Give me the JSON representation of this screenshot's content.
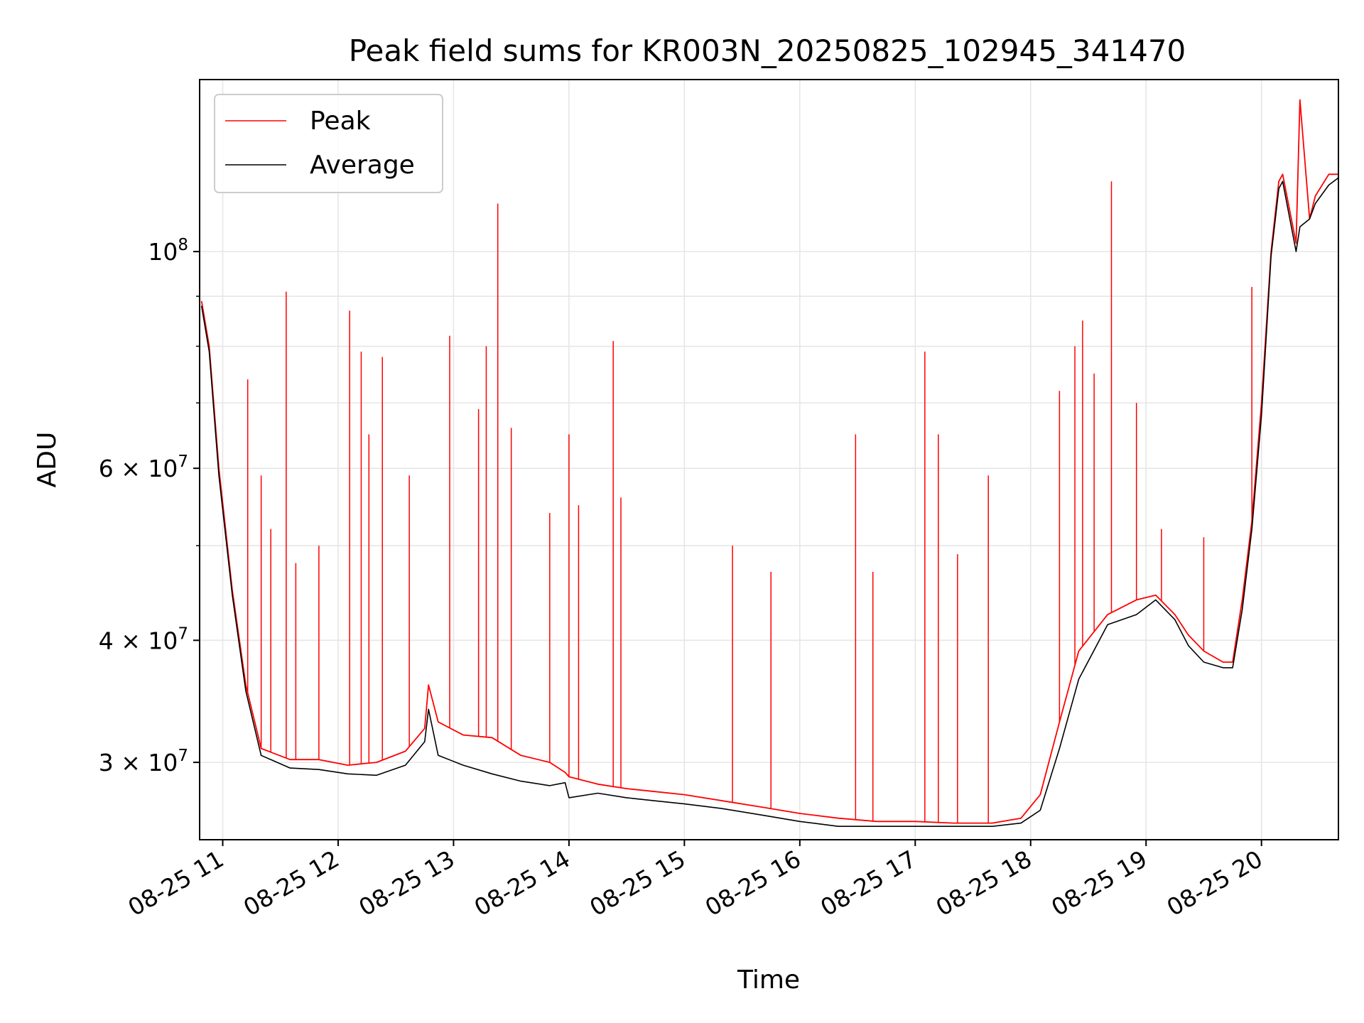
{
  "chart_data": {
    "type": "line",
    "title": "Peak field sums for KR003N_20250825_102945_341470",
    "xlabel": "Time",
    "ylabel": "ADU",
    "yscale": "log",
    "xlim": [
      "2025-08-25 10:48",
      "2025-08-25 20:40"
    ],
    "ylim": [
      25000000,
      150000000
    ],
    "grid": true,
    "legend": "upper-left",
    "x_ticks": [
      {
        "value": "2025-08-25 11:00",
        "label": "08-25 11"
      },
      {
        "value": "2025-08-25 12:00",
        "label": "08-25 12"
      },
      {
        "value": "2025-08-25 13:00",
        "label": "08-25 13"
      },
      {
        "value": "2025-08-25 14:00",
        "label": "08-25 14"
      },
      {
        "value": "2025-08-25 15:00",
        "label": "08-25 15"
      },
      {
        "value": "2025-08-25 16:00",
        "label": "08-25 16"
      },
      {
        "value": "2025-08-25 17:00",
        "label": "08-25 17"
      },
      {
        "value": "2025-08-25 18:00",
        "label": "08-25 18"
      },
      {
        "value": "2025-08-25 19:00",
        "label": "08-25 19"
      },
      {
        "value": "2025-08-25 20:00",
        "label": "08-25 20"
      }
    ],
    "y_ticks": [
      {
        "value": 30000000,
        "mantissa": "3",
        "exponent": "7"
      },
      {
        "value": 40000000,
        "mantissa": "4",
        "exponent": "7"
      },
      {
        "value": 60000000,
        "mantissa": "6",
        "exponent": "7"
      },
      {
        "value": 100000000,
        "mantissa": "",
        "exponent": "8"
      }
    ],
    "y_minor_ticks": [
      50000000,
      70000000,
      80000000,
      90000000
    ],
    "series": [
      {
        "name": "Peak",
        "color": "#ff0000",
        "x": [
          "2025-08-25 10:49",
          "2025-08-25 10:53",
          "2025-08-25 10:58",
          "2025-08-25 11:05",
          "2025-08-25 11:12",
          "2025-08-25 11:20",
          "2025-08-25 11:35",
          "2025-08-25 11:50",
          "2025-08-25 12:05",
          "2025-08-25 12:20",
          "2025-08-25 12:35",
          "2025-08-25 12:45",
          "2025-08-25 12:47",
          "2025-08-25 12:52",
          "2025-08-25 13:05",
          "2025-08-25 13:20",
          "2025-08-25 13:35",
          "2025-08-25 13:50",
          "2025-08-25 13:58",
          "2025-08-25 14:00",
          "2025-08-25 14:15",
          "2025-08-25 14:30",
          "2025-08-25 14:45",
          "2025-08-25 15:00",
          "2025-08-25 15:20",
          "2025-08-25 15:40",
          "2025-08-25 16:00",
          "2025-08-25 16:20",
          "2025-08-25 16:40",
          "2025-08-25 17:00",
          "2025-08-25 17:20",
          "2025-08-25 17:40",
          "2025-08-25 17:55",
          "2025-08-25 18:05",
          "2025-08-25 18:15",
          "2025-08-25 18:25",
          "2025-08-25 18:40",
          "2025-08-25 18:55",
          "2025-08-25 19:05",
          "2025-08-25 19:15",
          "2025-08-25 19:22",
          "2025-08-25 19:30",
          "2025-08-25 19:40",
          "2025-08-25 19:45",
          "2025-08-25 19:50",
          "2025-08-25 19:55",
          "2025-08-25 20:00",
          "2025-08-25 20:05",
          "2025-08-25 20:09",
          "2025-08-25 20:11",
          "2025-08-25 20:18",
          "2025-08-25 20:20",
          "2025-08-25 20:25",
          "2025-08-25 20:28",
          "2025-08-25 20:35",
          "2025-08-25 20:40"
        ],
        "values": [
          89000000,
          80000000,
          60000000,
          45000000,
          36000000,
          31000000,
          30200000,
          30200000,
          29800000,
          30000000,
          30800000,
          32500000,
          36000000,
          33000000,
          32000000,
          31800000,
          30500000,
          30000000,
          29300000,
          29000000,
          28500000,
          28200000,
          28000000,
          27800000,
          27400000,
          27000000,
          26600000,
          26300000,
          26100000,
          26100000,
          26000000,
          26000000,
          26300000,
          27800000,
          33000000,
          39000000,
          42500000,
          44000000,
          44500000,
          42500000,
          40500000,
          39000000,
          38000000,
          38000000,
          44000000,
          53000000,
          70000000,
          100000000,
          118000000,
          120000000,
          102000000,
          143000000,
          108000000,
          114000000,
          120000000,
          120000000
        ]
      },
      {
        "name": "Average",
        "color": "#000000",
        "x": [
          "2025-08-25 10:49",
          "2025-08-25 10:53",
          "2025-08-25 10:58",
          "2025-08-25 11:05",
          "2025-08-25 11:12",
          "2025-08-25 11:20",
          "2025-08-25 11:35",
          "2025-08-25 11:50",
          "2025-08-25 12:05",
          "2025-08-25 12:20",
          "2025-08-25 12:35",
          "2025-08-25 12:45",
          "2025-08-25 12:47",
          "2025-08-25 12:52",
          "2025-08-25 13:05",
          "2025-08-25 13:20",
          "2025-08-25 13:35",
          "2025-08-25 13:50",
          "2025-08-25 13:58",
          "2025-08-25 14:00",
          "2025-08-25 14:15",
          "2025-08-25 14:30",
          "2025-08-25 14:45",
          "2025-08-25 15:00",
          "2025-08-25 15:20",
          "2025-08-25 15:40",
          "2025-08-25 16:00",
          "2025-08-25 16:20",
          "2025-08-25 16:40",
          "2025-08-25 17:00",
          "2025-08-25 17:20",
          "2025-08-25 17:40",
          "2025-08-25 17:55",
          "2025-08-25 18:05",
          "2025-08-25 18:15",
          "2025-08-25 18:25",
          "2025-08-25 18:40",
          "2025-08-25 18:55",
          "2025-08-25 19:05",
          "2025-08-25 19:15",
          "2025-08-25 19:22",
          "2025-08-25 19:30",
          "2025-08-25 19:40",
          "2025-08-25 19:45",
          "2025-08-25 19:50",
          "2025-08-25 19:55",
          "2025-08-25 20:00",
          "2025-08-25 20:05",
          "2025-08-25 20:09",
          "2025-08-25 20:11",
          "2025-08-25 20:18",
          "2025-08-25 20:20",
          "2025-08-25 20:25",
          "2025-08-25 20:28",
          "2025-08-25 20:35",
          "2025-08-25 20:40"
        ],
        "values": [
          88000000,
          79000000,
          59000000,
          44500000,
          35500000,
          30500000,
          29600000,
          29500000,
          29200000,
          29100000,
          29800000,
          31500000,
          34000000,
          30500000,
          29800000,
          29200000,
          28700000,
          28400000,
          28600000,
          27600000,
          27900000,
          27600000,
          27400000,
          27200000,
          26900000,
          26500000,
          26100000,
          25800000,
          25800000,
          25800000,
          25800000,
          25800000,
          26000000,
          26800000,
          31000000,
          36500000,
          41500000,
          42500000,
          44000000,
          42000000,
          39500000,
          38000000,
          37500000,
          37500000,
          43000000,
          52000000,
          68000000,
          99000000,
          116000000,
          118000000,
          100000000,
          106000000,
          108000000,
          112000000,
          117000000,
          119000000
        ]
      }
    ],
    "spikes": {
      "series": "Peak",
      "x": [
        "2025-08-25 11:13",
        "2025-08-25 11:20",
        "2025-08-25 11:25",
        "2025-08-25 11:33",
        "2025-08-25 11:38",
        "2025-08-25 11:50",
        "2025-08-25 12:06",
        "2025-08-25 12:12",
        "2025-08-25 12:16",
        "2025-08-25 12:23",
        "2025-08-25 12:37",
        "2025-08-25 12:58",
        "2025-08-25 13:13",
        "2025-08-25 13:17",
        "2025-08-25 13:23",
        "2025-08-25 13:30",
        "2025-08-25 13:50",
        "2025-08-25 14:00",
        "2025-08-25 14:05",
        "2025-08-25 14:23",
        "2025-08-25 14:27",
        "2025-08-25 15:25",
        "2025-08-25 15:45",
        "2025-08-25 16:29",
        "2025-08-25 16:38",
        "2025-08-25 17:05",
        "2025-08-25 17:12",
        "2025-08-25 17:22",
        "2025-08-25 17:38",
        "2025-08-25 18:15",
        "2025-08-25 18:23",
        "2025-08-25 18:27",
        "2025-08-25 18:33",
        "2025-08-25 18:42",
        "2025-08-25 18:55",
        "2025-08-25 19:08",
        "2025-08-25 19:30",
        "2025-08-25 19:55",
        "2025-08-25 20:20"
      ],
      "values": [
        74000000,
        59000000,
        52000000,
        91000000,
        48000000,
        50000000,
        87000000,
        79000000,
        65000000,
        78000000,
        59000000,
        82000000,
        69000000,
        80000000,
        112000000,
        66000000,
        54000000,
        65000000,
        55000000,
        81000000,
        56000000,
        50000000,
        47000000,
        65000000,
        47000000,
        79000000,
        65000000,
        49000000,
        59000000,
        72000000,
        80000000,
        85000000,
        75000000,
        118000000,
        70000000,
        52000000,
        51000000,
        92000000,
        143000000
      ]
    }
  }
}
